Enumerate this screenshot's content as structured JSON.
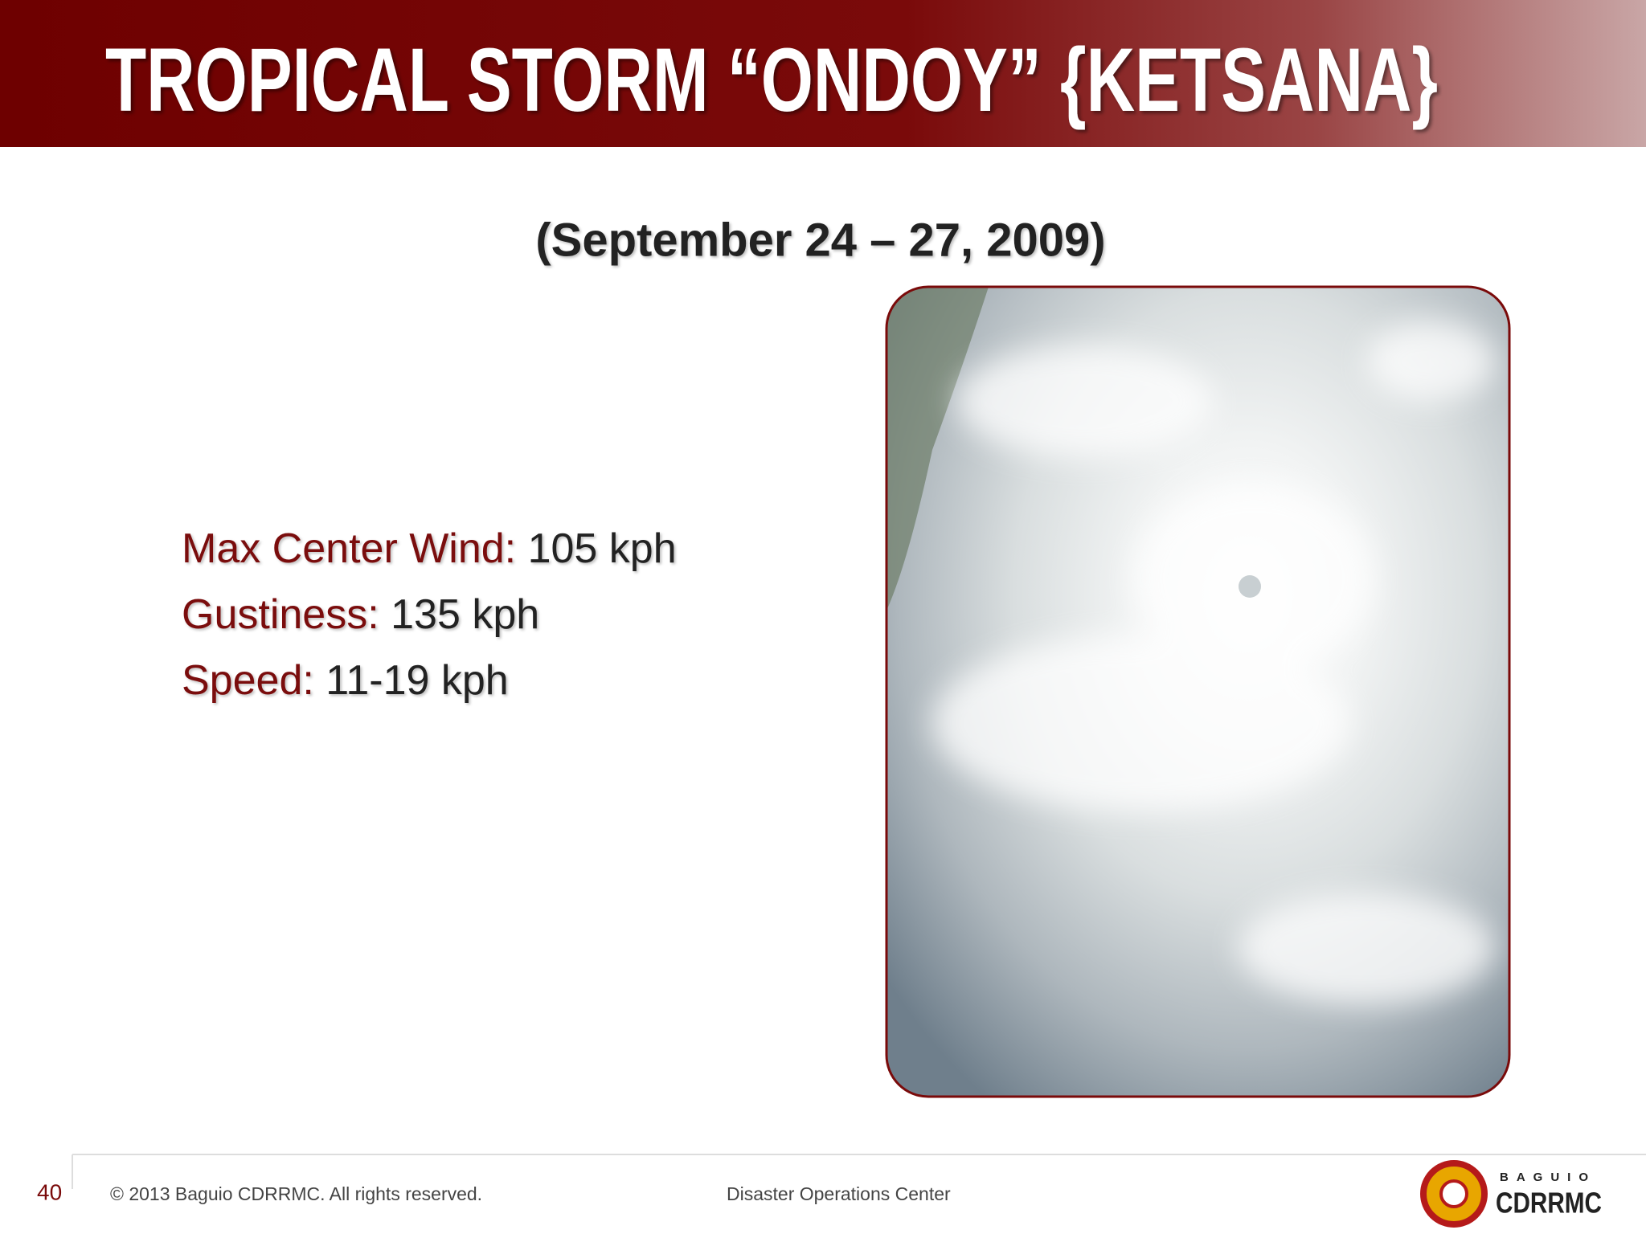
{
  "header": {
    "title": "TROPICAL STORM “ONDOY” {KETSANA}"
  },
  "subtitle": "(September 24 – 27, 2009)",
  "specs": [
    {
      "label": "Max Center Wind:",
      "value": "105 kph"
    },
    {
      "label": "Gustiness:",
      "value": "135 kph"
    },
    {
      "label": "Speed:",
      "value": "11-19 kph"
    }
  ],
  "footer": {
    "page_number": "40",
    "copyright": "© 2013 Baguio CDRRMC. All rights reserved.",
    "center": "Disaster Operations Center",
    "logo_top": "BAGUIO",
    "logo_text": "CDRRMC"
  }
}
